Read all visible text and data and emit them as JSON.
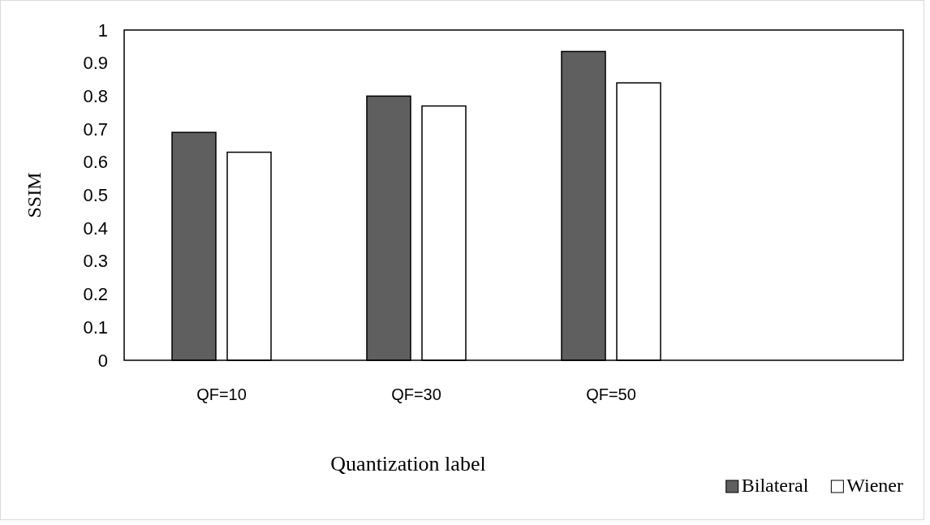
{
  "chart_data": {
    "type": "bar",
    "xlabel": "Quantization label",
    "ylabel": "SSIM",
    "categories": [
      "QF=10",
      "QF=30",
      "QF=50",
      null
    ],
    "series": [
      {
        "name": "Bilateral",
        "color": "#5f5f5f",
        "values": [
          0.69,
          0.8,
          0.935,
          null
        ]
      },
      {
        "name": "Wiener",
        "color": "#ffffff",
        "values": [
          0.63,
          0.77,
          0.84,
          null
        ]
      }
    ],
    "ylim": [
      0,
      1
    ],
    "yticks": [
      0,
      0.1,
      0.2,
      0.3,
      0.4,
      0.5,
      0.6,
      0.7,
      0.8,
      0.9,
      1
    ],
    "grid": false,
    "legend": "bottom right"
  }
}
